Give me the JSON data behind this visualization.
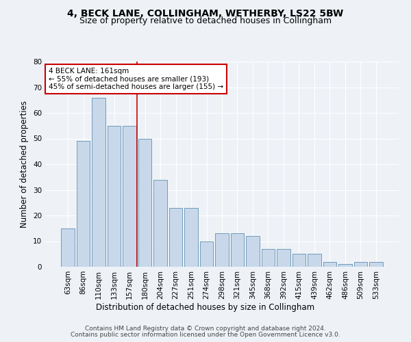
{
  "title": "4, BECK LANE, COLLINGHAM, WETHERBY, LS22 5BW",
  "subtitle": "Size of property relative to detached houses in Collingham",
  "xlabel": "Distribution of detached houses by size in Collingham",
  "ylabel": "Number of detached properties",
  "categories": [
    "63sqm",
    "86sqm",
    "110sqm",
    "133sqm",
    "157sqm",
    "180sqm",
    "204sqm",
    "227sqm",
    "251sqm",
    "274sqm",
    "298sqm",
    "321sqm",
    "345sqm",
    "368sqm",
    "392sqm",
    "415sqm",
    "439sqm",
    "462sqm",
    "486sqm",
    "509sqm",
    "533sqm"
  ],
  "values": [
    15,
    49,
    66,
    55,
    55,
    50,
    34,
    23,
    23,
    10,
    13,
    13,
    12,
    7,
    7,
    5,
    5,
    2,
    1,
    2,
    2
  ],
  "ylim": [
    0,
    80
  ],
  "yticks": [
    0,
    10,
    20,
    30,
    40,
    50,
    60,
    70,
    80
  ],
  "bar_color": "#c8d8ea",
  "bar_edge_color": "#6090b0",
  "vline_x_index": 4.5,
  "vline_color": "#cc0000",
  "annotation_text": "4 BECK LANE: 161sqm\n← 55% of detached houses are smaller (193)\n45% of semi-detached houses are larger (155) →",
  "annotation_box_color": "#ffffff",
  "annotation_box_edge": "#cc0000",
  "footer_line1": "Contains HM Land Registry data © Crown copyright and database right 2024.",
  "footer_line2": "Contains public sector information licensed under the Open Government Licence v3.0.",
  "background_color": "#eef2f7",
  "plot_bg_color": "#eef2f7",
  "grid_color": "#ffffff",
  "title_fontsize": 10,
  "subtitle_fontsize": 9,
  "axis_label_fontsize": 8.5,
  "tick_fontsize": 7.5,
  "footer_fontsize": 6.5
}
